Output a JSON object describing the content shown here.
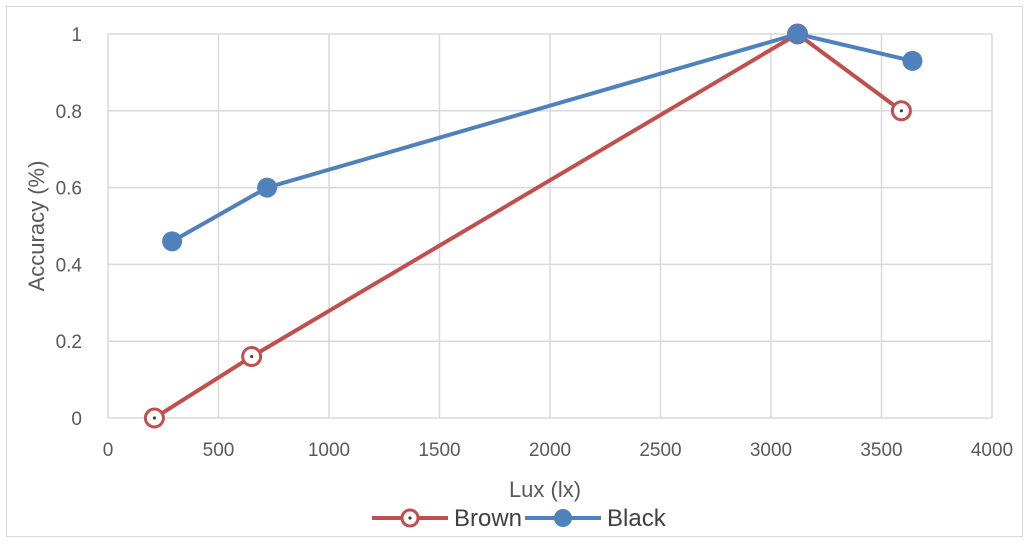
{
  "chart_data": {
    "type": "line",
    "title": "",
    "xlabel": "Lux (lx)",
    "ylabel": "Accuracy (%)",
    "xlim": [
      0,
      4000
    ],
    "ylim": [
      0,
      1
    ],
    "xticks": [
      0,
      500,
      1000,
      1500,
      2000,
      2500,
      3000,
      3500,
      4000
    ],
    "yticks": [
      0,
      0.2,
      0.4,
      0.6,
      0.8,
      1
    ],
    "grid": true,
    "legend_position": "bottom",
    "series": [
      {
        "name": "Brown",
        "color": "#c0504d",
        "marker": "open-circle",
        "x": [
          210,
          650,
          3120,
          3590
        ],
        "y": [
          0,
          0.16,
          1,
          0.8
        ]
      },
      {
        "name": "Black",
        "color": "#4f81bd",
        "marker": "filled-circle",
        "x": [
          290,
          720,
          3120,
          3640
        ],
        "y": [
          0.46,
          0.6,
          1,
          0.93
        ]
      }
    ]
  }
}
